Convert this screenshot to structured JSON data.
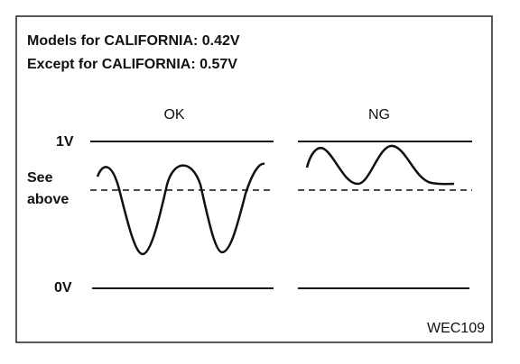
{
  "header": {
    "line1": "Models for CALIFORNIA: 0.42V",
    "line2": "Except for CALIFORNIA: 0.57V"
  },
  "panels": {
    "ok": "OK",
    "ng": "NG"
  },
  "axis_labels": {
    "top": "1V",
    "middle_1": "See",
    "middle_2": "above",
    "bottom": "0V"
  },
  "figure_id": "WEC109"
}
